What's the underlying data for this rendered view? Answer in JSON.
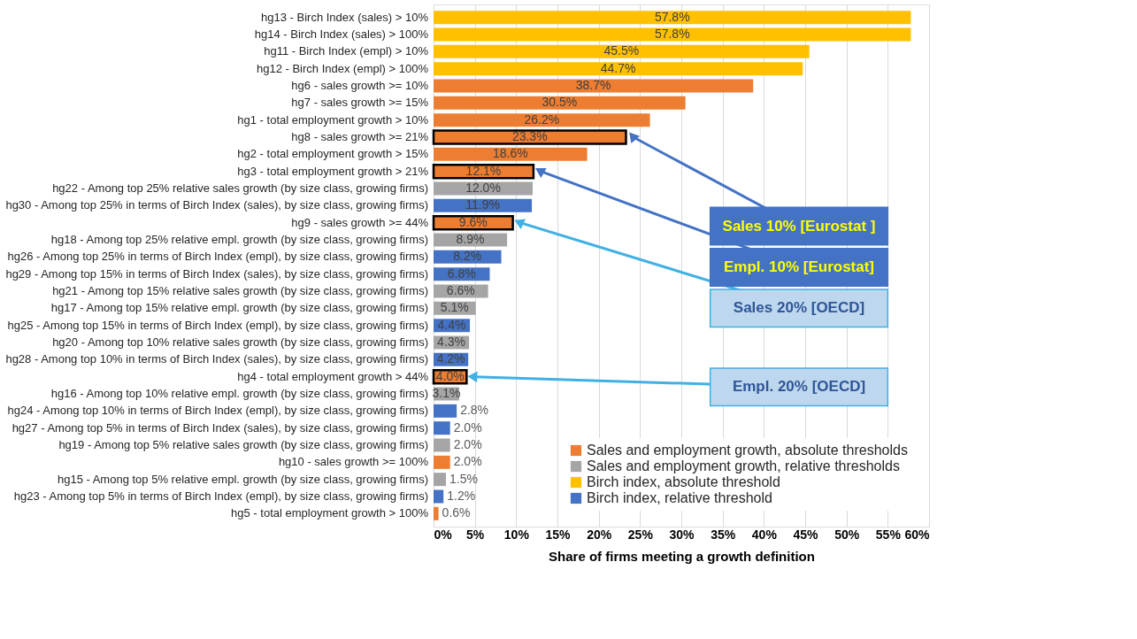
{
  "chart_data": {
    "type": "bar",
    "orientation": "horizontal",
    "xlabel": "Share of firms meeting a growth definition",
    "categories": [
      "hg13 - Birch Index (sales) > 10%",
      "hg14 - Birch Index (sales) > 100%",
      "hg11 - Birch Index (empl) > 10%",
      "hg12 - Birch Index (empl) > 100%",
      "hg6 - sales growth >= 10%",
      "hg7 - sales growth >= 15%",
      "hg1 - total employment growth > 10%",
      "hg8 - sales growth >= 21%",
      "hg2 - total employment growth > 15%",
      "hg3 - total employment growth > 21%",
      "hg22 - Among top 25% relative sales growth (by size class, growing firms)",
      "hg30 - Among top 25% in terms of Birch Index (sales), by size class, growing firms)",
      "hg9 - sales growth >= 44%",
      "hg18 - Among top 25% relative empl. growth (by size class, growing firms)",
      "hg26 - Among top 25% in terms of Birch Index (empl), by size class, growing firms)",
      "hg29 - Among top 15% in terms of Birch Index (sales), by size class, growing firms)",
      "hg21 - Among top 15% relative sales growth (by size class, growing firms)",
      "hg17 - Among top 15% relative empl. growth (by size class, growing firms)",
      "hg25 - Among top 15% in terms of Birch Index (empl), by size class, growing firms)",
      "hg20 - Among top 10% relative sales growth (by size class, growing firms)",
      "hg28 - Among top 10% in terms of Birch Index (sales), by size class, growing firms)",
      "hg4 - total employment growth > 44%",
      "hg16 - Among top 10% relative empl. growth (by size class, growing firms)",
      "hg24 - Among top 10% in terms of Birch Index (empl), by size class, growing firms)",
      "hg27 - Among top 5% in terms of Birch Index (sales), by size class, growing firms)",
      "hg19 - Among top 5% relative sales growth (by size class, growing firms)",
      "hg10 - sales growth >= 100%",
      "hg15 - Among top 5% relative empl. growth (by size class, growing firms)",
      "hg23 - Among top 5% in terms of Birch Index (empl), by size class, growing firms)",
      "hg5 - total employment growth > 100%"
    ],
    "series": [
      {
        "name": "Sales and employment growth, absolute thresholds",
        "color": "#ed7d31",
        "values": [
          null,
          null,
          null,
          null,
          38.7,
          30.5,
          26.2,
          23.3,
          18.6,
          12.1,
          null,
          null,
          9.6,
          null,
          null,
          null,
          null,
          null,
          null,
          null,
          null,
          4.0,
          null,
          null,
          null,
          null,
          2.0,
          null,
          null,
          0.6
        ],
        "value_labels": [
          null,
          null,
          null,
          null,
          "38.7%",
          "30.5%",
          "26.2%",
          "23.3%",
          "18.6%",
          "12.1%",
          null,
          null,
          "9.6%",
          null,
          null,
          null,
          null,
          null,
          null,
          null,
          null,
          "4.0%",
          null,
          null,
          null,
          null,
          "2.0%",
          null,
          null,
          "0.6%"
        ]
      },
      {
        "name": "Sales and employment growth, relative thresholds",
        "color": "#a5a5a5",
        "values": [
          null,
          null,
          null,
          null,
          null,
          null,
          null,
          null,
          null,
          null,
          12.0,
          null,
          null,
          8.9,
          null,
          null,
          6.6,
          5.1,
          null,
          4.3,
          null,
          null,
          3.1,
          null,
          null,
          2.0,
          null,
          1.5,
          null,
          null
        ],
        "value_labels": [
          null,
          null,
          null,
          null,
          null,
          null,
          null,
          null,
          null,
          null,
          "12.0%",
          null,
          null,
          "8.9%",
          null,
          null,
          "6.6%",
          "5.1%",
          null,
          "4.3%",
          null,
          null,
          "3.1%",
          null,
          null,
          "2.0%",
          null,
          "1.5%",
          null,
          null
        ]
      },
      {
        "name": "Birch index, absolute threshold",
        "color": "#ffc000",
        "values": [
          57.8,
          57.8,
          45.5,
          44.7,
          null,
          null,
          null,
          null,
          null,
          null,
          null,
          null,
          null,
          null,
          null,
          null,
          null,
          null,
          null,
          null,
          null,
          null,
          null,
          null,
          null,
          null,
          null,
          null,
          null,
          null
        ],
        "value_labels": [
          "57.8%",
          "57.8%",
          "45.5%",
          "44.7%",
          null,
          null,
          null,
          null,
          null,
          null,
          null,
          null,
          null,
          null,
          null,
          null,
          null,
          null,
          null,
          null,
          null,
          null,
          null,
          null,
          null,
          null,
          null,
          null,
          null,
          null
        ]
      },
      {
        "name": "Birch index, relative threshold",
        "color": "#4472c4",
        "values": [
          null,
          null,
          null,
          null,
          null,
          null,
          null,
          null,
          null,
          null,
          null,
          11.9,
          null,
          null,
          8.2,
          6.8,
          null,
          null,
          4.4,
          null,
          4.2,
          null,
          null,
          2.8,
          2.0,
          null,
          null,
          null,
          1.2,
          null
        ],
        "value_labels": [
          null,
          null,
          null,
          null,
          null,
          null,
          null,
          null,
          null,
          null,
          null,
          "11.9%",
          null,
          null,
          "8.2%",
          "6.8%",
          null,
          null,
          "4.4%",
          null,
          "4.2%",
          null,
          null,
          "2.8%",
          "2.0%",
          null,
          null,
          null,
          "1.2%",
          null
        ]
      }
    ],
    "xlim": [
      0,
      60
    ],
    "xticks": [
      {
        "value": 0,
        "label": "0%"
      },
      {
        "value": 5,
        "label": "5%"
      },
      {
        "value": 10,
        "label": "10%"
      },
      {
        "value": 15,
        "label": "15%"
      },
      {
        "value": 20,
        "label": "20%"
      },
      {
        "value": 25,
        "label": "25%"
      },
      {
        "value": 30,
        "label": "30%"
      },
      {
        "value": 35,
        "label": "35%"
      },
      {
        "value": 40,
        "label": "40%"
      },
      {
        "value": 45,
        "label": "45%"
      },
      {
        "value": 50,
        "label": "50%"
      },
      {
        "value": 55,
        "label": "55%"
      },
      {
        "value": 60,
        "label": "60%"
      }
    ],
    "grid": "x",
    "legend": "bottom right",
    "annotations": [
      {
        "text": "Sales 10% [Eurostat ]",
        "x": 23.3,
        "y": "hg8 - sales growth >= 21%"
      },
      {
        "text": "Empl. 10% [Eurostat]",
        "x": 12.1,
        "y": "hg3 - total employment growth > 21%"
      },
      {
        "text": "Sales 20% [OECD]",
        "x": 9.6,
        "y": "hg9 - sales growth >= 44%"
      },
      {
        "text": "Empl. 20% [OECD]",
        "x": 4.0,
        "y": "hg4 - total employment growth > 44%"
      }
    ]
  }
}
